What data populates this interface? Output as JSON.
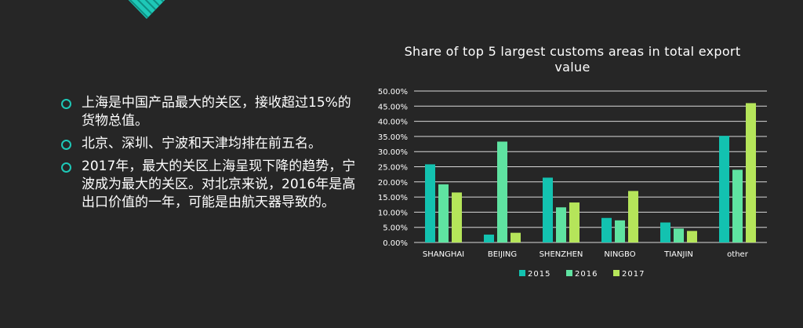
{
  "slide": {
    "bullets": [
      "上海是中国产品最大的关区，接收超过15%的货物总值。",
      "北京、深圳、宁波和天津均排在前五名。",
      "2017年，最大的关区上海呈现下降的趋势，宁波成为最大的关区。对北京来说，2016年是高出口价值的一年，可能是由航天器导致的。"
    ]
  },
  "colors": {
    "background": "#262626",
    "accent": "#1ec8b7",
    "series_2015": "#13c2b0",
    "series_2016": "#5fe3a1",
    "series_2017": "#b5e55a"
  },
  "chart_data": {
    "type": "bar",
    "title": "Share of top 5 largest customs areas in total export value",
    "categories": [
      "SHANGHAI",
      "BEIJING",
      "SHENZHEN",
      "NINGBO",
      "TIANJIN",
      "other"
    ],
    "series": [
      {
        "name": "2015",
        "values": [
          25.8,
          2.6,
          21.4,
          8.1,
          6.6,
          35.2
        ]
      },
      {
        "name": "2016",
        "values": [
          19.2,
          33.3,
          11.6,
          7.3,
          4.6,
          24.0
        ]
      },
      {
        "name": "2017",
        "values": [
          16.5,
          3.2,
          13.2,
          17.0,
          3.8,
          46.0
        ]
      }
    ],
    "yticks": [
      "0.00%",
      "5.00%",
      "10.00%",
      "15.00%",
      "20.00%",
      "25.00%",
      "30.00%",
      "35.00%",
      "40.00%",
      "45.00%",
      "50.00%"
    ],
    "ylim": [
      0,
      50
    ],
    "grid": true,
    "legend_position": "bottom"
  }
}
